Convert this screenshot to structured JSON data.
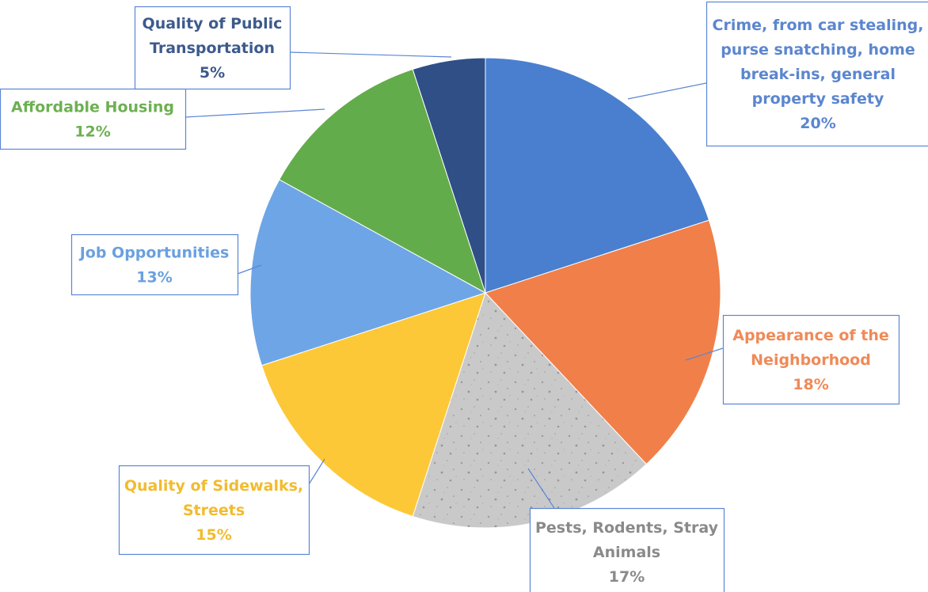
{
  "chart_data": {
    "type": "pie",
    "slices": [
      {
        "label_lines": [
          "Crime, from car stealing,",
          "purse snatching, home",
          "break-ins, general",
          "property safety"
        ],
        "value": 20,
        "pct": "20%",
        "color": "#4a7fcf",
        "text_color": "#5b86cf"
      },
      {
        "label_lines": [
          "Appearance of the",
          "Neighborhood"
        ],
        "value": 18,
        "pct": "18%",
        "color": "#f07f49",
        "text_color": "#ef8a58"
      },
      {
        "label_lines": [
          "Pests, Rodents, Stray",
          "Animals"
        ],
        "value": 17,
        "pct": "17%",
        "color": "#c8c8c8",
        "text_color": "#8a8a8a"
      },
      {
        "label_lines": [
          "Quality of Sidewalks,",
          "Streets"
        ],
        "value": 15,
        "pct": "15%",
        "color": "#fdc837",
        "text_color": "#f2bb2f"
      },
      {
        "label_lines": [
          "Job Opportunities"
        ],
        "value": 13,
        "pct": "13%",
        "color": "#6ea5e6",
        "text_color": "#6aa0df"
      },
      {
        "label_lines": [
          "Affordable Housing"
        ],
        "value": 12,
        "pct": "12%",
        "color": "#63ac4b",
        "text_color": "#6db052"
      },
      {
        "label_lines": [
          "Quality of Public",
          "Transportation"
        ],
        "value": 5,
        "pct": "5%",
        "color": "#2f4f86",
        "text_color": "#3d5a8c"
      }
    ],
    "label_border_color": "#5b86d6"
  }
}
